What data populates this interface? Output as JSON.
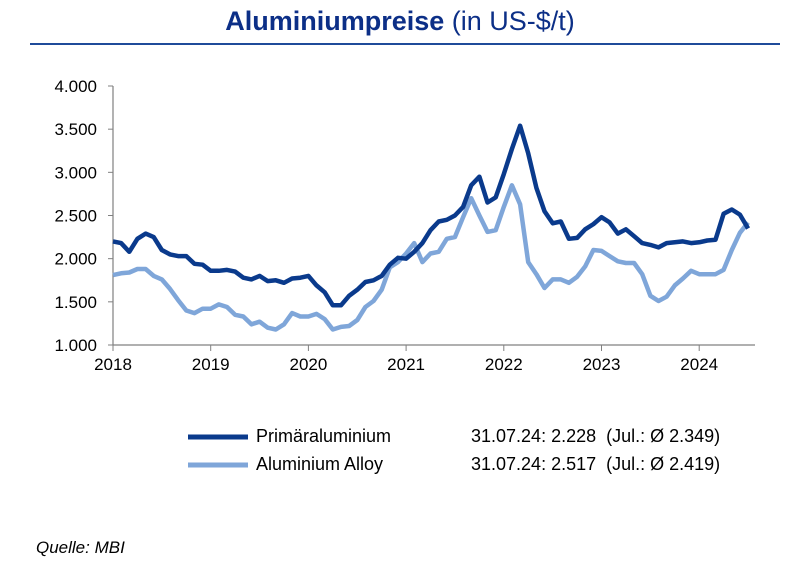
{
  "chart_data": {
    "type": "line",
    "title": "Aluminiumpreise",
    "subtitle": "(in US-$/t)",
    "ylim": [
      1000,
      4000
    ],
    "yticks": [
      "1.000",
      "1.500",
      "2.000",
      "2.500",
      "3.000",
      "3.500",
      "4.000"
    ],
    "ytick_values": [
      1000,
      1500,
      2000,
      2500,
      3000,
      3500,
      4000
    ],
    "xticks": [
      "2018",
      "2019",
      "2020",
      "2021",
      "2022",
      "2023",
      "2024"
    ],
    "x_start": "2018-01",
    "x_frequency": "monthly",
    "grid": false,
    "legend_placement": "bottom",
    "series": [
      {
        "name": "Primäraluminium",
        "color": "#0a3a8c",
        "annotation": "31.07.24: 2.228  (Jul.: Ø 2.349)",
        "values": [
          2200,
          2180,
          2080,
          2230,
          2290,
          2250,
          2100,
          2050,
          2030,
          2030,
          1940,
          1930,
          1860,
          1860,
          1870,
          1850,
          1780,
          1760,
          1800,
          1740,
          1750,
          1720,
          1770,
          1780,
          1800,
          1690,
          1610,
          1460,
          1460,
          1570,
          1640,
          1730,
          1750,
          1800,
          1930,
          2010,
          2000,
          2080,
          2180,
          2330,
          2430,
          2450,
          2500,
          2600,
          2850,
          2950,
          2650,
          2710,
          2980,
          3270,
          3540,
          3220,
          2820,
          2550,
          2410,
          2430,
          2230,
          2240,
          2340,
          2400,
          2480,
          2420,
          2290,
          2340,
          2260,
          2180,
          2160,
          2130,
          2180,
          2190,
          2200,
          2180,
          2190,
          2210,
          2220,
          2520,
          2570,
          2510,
          2349
        ]
      },
      {
        "name": "Aluminium Alloy",
        "color": "#7fa6d9",
        "annotation": "31.07.24: 2.517  (Jul.: Ø 2.419)",
        "values": [
          1810,
          1830,
          1840,
          1880,
          1880,
          1800,
          1760,
          1650,
          1520,
          1400,
          1370,
          1420,
          1420,
          1470,
          1440,
          1350,
          1330,
          1240,
          1270,
          1200,
          1180,
          1240,
          1370,
          1330,
          1330,
          1360,
          1300,
          1180,
          1210,
          1220,
          1290,
          1440,
          1510,
          1640,
          1900,
          1960,
          2060,
          2180,
          1960,
          2060,
          2080,
          2230,
          2250,
          2480,
          2700,
          2500,
          2310,
          2330,
          2600,
          2850,
          2630,
          1960,
          1820,
          1660,
          1760,
          1760,
          1720,
          1790,
          1910,
          2100,
          2090,
          2030,
          1970,
          1950,
          1950,
          1820,
          1570,
          1510,
          1560,
          1690,
          1770,
          1860,
          1820,
          1820,
          1820,
          1870,
          2100,
          2300,
          2419
        ]
      }
    ]
  },
  "source": "Quelle: MBI"
}
